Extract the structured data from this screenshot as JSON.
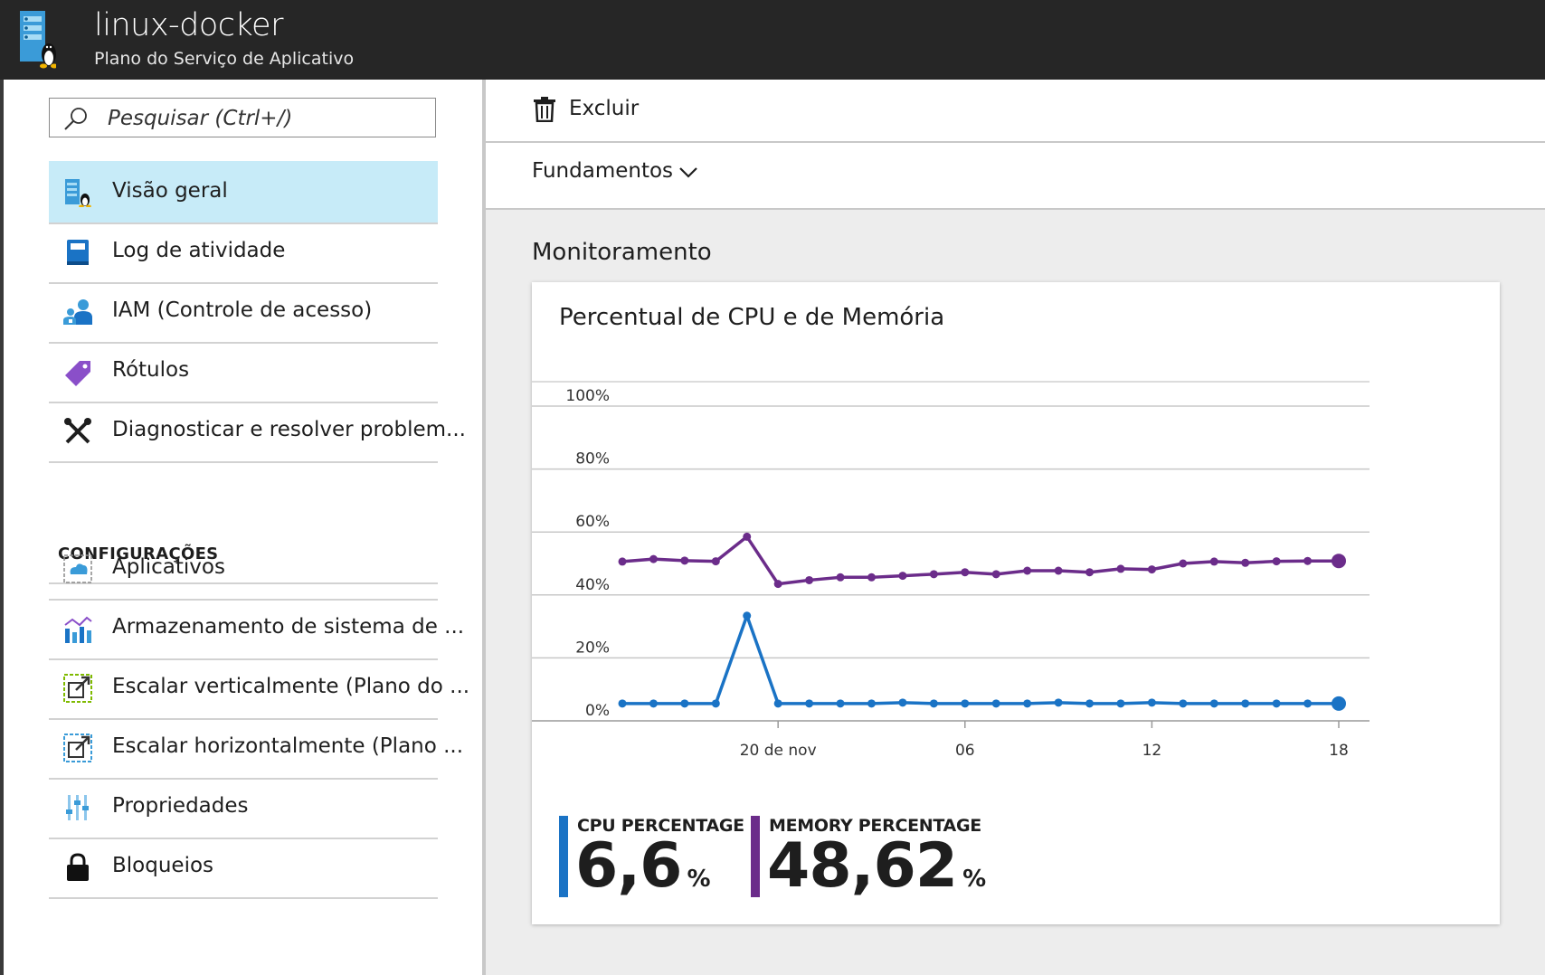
{
  "header": {
    "title": "linux-docker",
    "subtitle": "Plano do Serviço de Aplicativo"
  },
  "search": {
    "placeholder": "Pesquisar (Ctrl+/)"
  },
  "sidebar": {
    "items": [
      {
        "label": "Visão geral",
        "icon": "app-service-plan-icon"
      },
      {
        "label": "Log de atividade",
        "icon": "activity-log-icon"
      },
      {
        "label": "IAM (Controle de acesso)",
        "icon": "users-icon"
      },
      {
        "label": "Rótulos",
        "icon": "tag-icon"
      },
      {
        "label": "Diagnosticar e resolver problem...",
        "icon": "wrench-icon"
      }
    ],
    "section_label": "CONFIGURAÇÕES",
    "settings_items": [
      {
        "label": "Aplicativos",
        "icon": "apps-icon"
      },
      {
        "label": "Armazenamento de sistema de ...",
        "icon": "storage-chart-icon"
      },
      {
        "label": "Escalar verticalmente (Plano do ...",
        "icon": "scale-up-icon"
      },
      {
        "label": "Escalar horizontalmente (Plano ...",
        "icon": "scale-out-icon"
      },
      {
        "label": "Propriedades",
        "icon": "sliders-icon"
      },
      {
        "label": "Bloqueios",
        "icon": "lock-icon"
      }
    ]
  },
  "toolbar": {
    "delete_label": "Excluir"
  },
  "essentials": {
    "label": "Fundamentos"
  },
  "monitoring": {
    "title": "Monitoramento"
  },
  "colors": {
    "cpu": "#1a73c5",
    "memory": "#6b2c8a",
    "active_nav": "#c7ebf8",
    "header": "#262626"
  },
  "chart_data": {
    "type": "line",
    "title": "Percentual de CPU e de Memória",
    "y_ticks": [
      "100%",
      "80%",
      "60%",
      "40%",
      "20%",
      "0%"
    ],
    "ylim": [
      0,
      100
    ],
    "x_ticks": [
      {
        "label": "20 de nov",
        "index": 5
      },
      {
        "label": "06",
        "index": 11
      },
      {
        "label": "12",
        "index": 17
      },
      {
        "label": "18",
        "index": 23
      }
    ],
    "series": [
      {
        "name": "MEMORY PERCENTAGE",
        "values": [
          50.6,
          51.4,
          50.9,
          50.7,
          58.5,
          43.5,
          44.7,
          45.6,
          45.6,
          46.1,
          46.6,
          47.2,
          46.6,
          47.7,
          47.7,
          47.2,
          48.3,
          48.1,
          50.0,
          50.6,
          50.2,
          50.7,
          50.8,
          50.8
        ],
        "latest": "48,62",
        "unit": "%"
      },
      {
        "name": "CPU PERCENTAGE",
        "values": [
          5.5,
          5.5,
          5.5,
          5.5,
          33.4,
          5.5,
          5.5,
          5.5,
          5.5,
          5.8,
          5.5,
          5.5,
          5.5,
          5.5,
          5.8,
          5.5,
          5.5,
          5.8,
          5.5,
          5.5,
          5.5,
          5.5,
          5.5,
          5.5
        ],
        "latest": "6,6",
        "unit": "%"
      }
    ]
  }
}
